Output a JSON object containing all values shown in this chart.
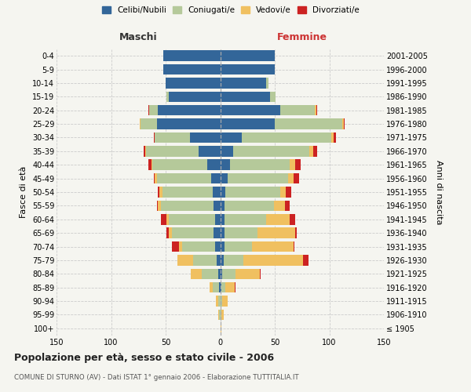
{
  "age_groups": [
    "0-4",
    "5-9",
    "10-14",
    "15-19",
    "20-24",
    "25-29",
    "30-34",
    "35-39",
    "40-44",
    "45-49",
    "50-54",
    "55-59",
    "60-64",
    "65-69",
    "70-74",
    "75-79",
    "80-84",
    "85-89",
    "90-94",
    "95-99",
    "100+"
  ],
  "birth_years": [
    "2001-2005",
    "1996-2000",
    "1991-1995",
    "1986-1990",
    "1981-1985",
    "1976-1980",
    "1971-1975",
    "1966-1970",
    "1961-1965",
    "1956-1960",
    "1951-1955",
    "1946-1950",
    "1941-1945",
    "1936-1940",
    "1931-1935",
    "1926-1930",
    "1921-1925",
    "1916-1920",
    "1911-1915",
    "1906-1910",
    "≤ 1905"
  ],
  "male_celibi": [
    52,
    52,
    50,
    47,
    57,
    58,
    28,
    20,
    12,
    8,
    7,
    6,
    5,
    6,
    5,
    3,
    2,
    1,
    0,
    0,
    0
  ],
  "male_coniugati": [
    0,
    0,
    0,
    2,
    8,
    15,
    32,
    48,
    50,
    50,
    46,
    48,
    42,
    38,
    30,
    22,
    15,
    6,
    2,
    1,
    0
  ],
  "male_vedovi": [
    0,
    0,
    0,
    0,
    0,
    1,
    0,
    1,
    1,
    2,
    3,
    3,
    2,
    3,
    3,
    14,
    10,
    3,
    2,
    1,
    0
  ],
  "male_divorziati": [
    0,
    0,
    0,
    0,
    1,
    0,
    1,
    1,
    3,
    1,
    1,
    1,
    5,
    2,
    6,
    0,
    0,
    0,
    0,
    0,
    0
  ],
  "female_celibi": [
    50,
    50,
    42,
    46,
    55,
    50,
    20,
    12,
    9,
    7,
    5,
    4,
    4,
    4,
    4,
    3,
    2,
    1,
    0,
    0,
    0
  ],
  "female_coniugati": [
    0,
    0,
    2,
    5,
    32,
    62,
    82,
    70,
    55,
    55,
    50,
    45,
    38,
    30,
    25,
    18,
    12,
    4,
    2,
    1,
    0
  ],
  "female_vedovi": [
    0,
    0,
    0,
    0,
    1,
    1,
    2,
    3,
    5,
    5,
    5,
    10,
    22,
    35,
    38,
    55,
    22,
    8,
    5,
    2,
    1
  ],
  "female_divorziati": [
    0,
    0,
    0,
    0,
    1,
    1,
    2,
    4,
    5,
    5,
    5,
    5,
    5,
    1,
    1,
    5,
    1,
    1,
    0,
    0,
    0
  ],
  "colors": {
    "celibi": "#336699",
    "coniugati": "#b5c99a",
    "vedovi": "#f0c060",
    "divorziati": "#cc2222"
  },
  "xlim": 150,
  "title": "Popolazione per età, sesso e stato civile - 2006",
  "subtitle": "COMUNE DI STURNO (AV) - Dati ISTAT 1° gennaio 2006 - Elaborazione TUTTITALIA.IT",
  "ylabel_left": "Fasce di età",
  "ylabel_right": "Anni di nascita",
  "xlabel_maschi": "Maschi",
  "xlabel_femmine": "Femmine",
  "bg_color": "#f5f5f0",
  "grid_color": "#cccccc"
}
